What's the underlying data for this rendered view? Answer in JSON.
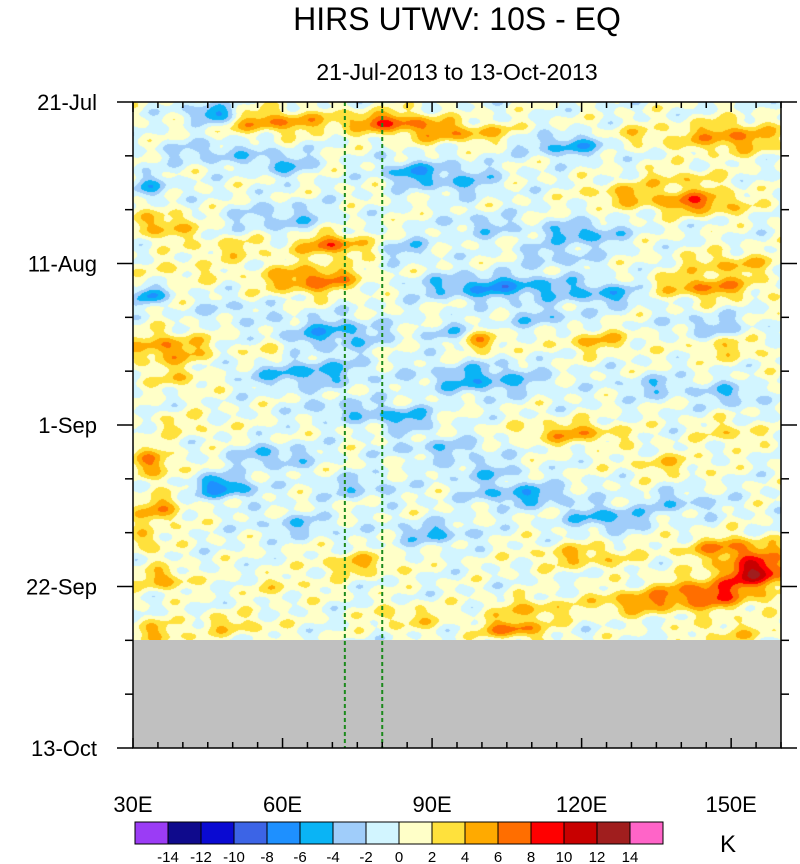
{
  "chart_data": {
    "type": "heatmap",
    "title": "HIRS UTWV: 10S - EQ",
    "subtitle": "21-Jul-2013 to 13-Oct-2013",
    "x_axis": {
      "range": [
        30,
        160
      ],
      "tick_values": [
        30,
        60,
        90,
        120,
        150
      ],
      "tick_labels": [
        "30E",
        "60E",
        "90E",
        "120E",
        "150E"
      ],
      "minor_step": 5
    },
    "y_axis": {
      "range_days": [
        0,
        84
      ],
      "direction": "downward",
      "tick_days": [
        0,
        21,
        42,
        63,
        84
      ],
      "tick_labels": [
        "21-Jul",
        "11-Aug",
        "1-Sep",
        "22-Sep",
        "13-Oct"
      ],
      "minor_step_days": 7
    },
    "missing_after_day": 70,
    "missing_color": "#c0c0c0",
    "reference_lines": [
      {
        "lon": 72.5,
        "color": "#1c8a1c",
        "style": "dashed"
      },
      {
        "lon": 80,
        "color": "#1c8a1c",
        "style": "dashed"
      }
    ],
    "colorbar": {
      "unit": "K",
      "tick_labels": [
        "-14",
        "-12",
        "-10",
        "-8",
        "-6",
        "-4",
        "-2",
        "0",
        "2",
        "4",
        "6",
        "8",
        "10",
        "12",
        "14"
      ],
      "levels": [
        -14,
        -12,
        -10,
        -8,
        -6,
        -4,
        -2,
        0,
        2,
        4,
        6,
        8,
        10,
        12,
        14
      ],
      "colors": [
        "#9b3cf5",
        "#0f0a8c",
        "#0a0ad2",
        "#3c64e6",
        "#1e90ff",
        "#0ab4f5",
        "#a0cdfa",
        "#d2f5ff",
        "#ffffc8",
        "#ffe13c",
        "#ffaa00",
        "#ff6e00",
        "#ff0000",
        "#c80000",
        "#a01e1e",
        "#ff64c8"
      ]
    },
    "anomaly_features": [
      {
        "day": 1.5,
        "lon": 46,
        "amp": -7,
        "dlon": 5,
        "dday": 1.2
      },
      {
        "day": 2.5,
        "lon": 58,
        "amp": 6,
        "dlon": 10,
        "dday": 1.5
      },
      {
        "day": 2.5,
        "lon": 81,
        "amp": 7,
        "dlon": 10,
        "dday": 1.3
      },
      {
        "day": 4,
        "lon": 95,
        "amp": 5,
        "dlon": 12,
        "dday": 1.3
      },
      {
        "day": 4.5,
        "lon": 150,
        "amp": 6,
        "dlon": 10,
        "dday": 2
      },
      {
        "day": 4.5,
        "lon": 130,
        "amp": 3,
        "dlon": 8,
        "dday": 1.5
      },
      {
        "day": 5.5,
        "lon": 118,
        "amp": -5,
        "dlon": 10,
        "dday": 1.5
      },
      {
        "day": 6.5,
        "lon": 46,
        "amp": -3,
        "dlon": 10,
        "dday": 1.5
      },
      {
        "day": 8,
        "lon": 60,
        "amp": -4,
        "dlon": 6,
        "dday": 1.5
      },
      {
        "day": 9,
        "lon": 85,
        "amp": -5,
        "dlon": 5,
        "dday": 1.5
      },
      {
        "day": 10,
        "lon": 95,
        "amp": -4,
        "dlon": 8,
        "dday": 2
      },
      {
        "day": 10,
        "lon": 140,
        "amp": 3,
        "dlon": 8,
        "dday": 1.5
      },
      {
        "day": 11,
        "lon": 34,
        "amp": -4,
        "dlon": 4,
        "dday": 1.5
      },
      {
        "day": 12,
        "lon": 128,
        "amp": 4,
        "dlon": 7,
        "dday": 1.5
      },
      {
        "day": 13,
        "lon": 143,
        "amp": 7,
        "dlon": 9,
        "dday": 1.5
      },
      {
        "day": 15,
        "lon": 60,
        "amp": -3,
        "dlon": 10,
        "dday": 2
      },
      {
        "day": 16,
        "lon": 36,
        "amp": 5,
        "dlon": 6,
        "dday": 1.8
      },
      {
        "day": 16,
        "lon": 100,
        "amp": -3,
        "dlon": 7,
        "dday": 1.5
      },
      {
        "day": 17,
        "lon": 120,
        "amp": -5,
        "dlon": 8,
        "dday": 1.5
      },
      {
        "day": 18.5,
        "lon": 70,
        "amp": 7,
        "dlon": 7,
        "dday": 1.5
      },
      {
        "day": 19,
        "lon": 50,
        "amp": 3,
        "dlon": 8,
        "dday": 1.5
      },
      {
        "day": 19,
        "lon": 85,
        "amp": -3,
        "dlon": 6,
        "dday": 1.5
      },
      {
        "day": 20,
        "lon": 115,
        "amp": -3,
        "dlon": 8,
        "dday": 1.5
      },
      {
        "day": 21,
        "lon": 150,
        "amp": 4,
        "dlon": 10,
        "dday": 1.5
      },
      {
        "day": 22,
        "lon": 40,
        "amp": 2,
        "dlon": 8,
        "dday": 1.5
      },
      {
        "day": 23,
        "lon": 66,
        "amp": 7,
        "dlon": 10,
        "dday": 1.8
      },
      {
        "day": 24,
        "lon": 103,
        "amp": -6,
        "dlon": 16,
        "dday": 1.6
      },
      {
        "day": 24,
        "lon": 145,
        "amp": 6,
        "dlon": 10,
        "dday": 1.5
      },
      {
        "day": 25,
        "lon": 33,
        "amp": -6,
        "dlon": 3,
        "dday": 1.2
      },
      {
        "day": 25,
        "lon": 125,
        "amp": -4,
        "dlon": 8,
        "dday": 1.5
      },
      {
        "day": 27,
        "lon": 50,
        "amp": -2,
        "dlon": 8,
        "dday": 1.5
      },
      {
        "day": 28,
        "lon": 112,
        "amp": -3,
        "dlon": 8,
        "dday": 1.5
      },
      {
        "day": 29,
        "lon": 146,
        "amp": -3,
        "dlon": 8,
        "dday": 1.5
      },
      {
        "day": 30,
        "lon": 70,
        "amp": -5,
        "dlon": 10,
        "dday": 2
      },
      {
        "day": 30,
        "lon": 95,
        "amp": -3,
        "dlon": 6,
        "dday": 1.5
      },
      {
        "day": 31,
        "lon": 100,
        "amp": 6,
        "dlon": 4,
        "dday": 1.5
      },
      {
        "day": 31,
        "lon": 123,
        "amp": 4,
        "dlon": 8,
        "dday": 1.5
      },
      {
        "day": 32,
        "lon": 37,
        "amp": 6,
        "dlon": 8,
        "dday": 2
      },
      {
        "day": 32,
        "lon": 150,
        "amp": 3,
        "dlon": 8,
        "dday": 1.5
      },
      {
        "day": 33,
        "lon": 58,
        "amp": 3,
        "dlon": 6,
        "dday": 1.5
      },
      {
        "day": 35,
        "lon": 64,
        "amp": -5,
        "dlon": 12,
        "dday": 2
      },
      {
        "day": 36,
        "lon": 100,
        "amp": -5,
        "dlon": 12,
        "dday": 2
      },
      {
        "day": 36,
        "lon": 40,
        "amp": 3,
        "dlon": 6,
        "dday": 1.5
      },
      {
        "day": 37,
        "lon": 135,
        "amp": -3,
        "dlon": 8,
        "dday": 1.5
      },
      {
        "day": 38,
        "lon": 150,
        "amp": -4,
        "dlon": 5,
        "dday": 1.5
      },
      {
        "day": 40,
        "lon": 72,
        "amp": -3,
        "dlon": 8,
        "dday": 1.5
      },
      {
        "day": 41,
        "lon": 84,
        "amp": -5,
        "dlon": 6,
        "dday": 1.5
      },
      {
        "day": 42,
        "lon": 40,
        "amp": 2,
        "dlon": 8,
        "dday": 1.5
      },
      {
        "day": 43,
        "lon": 118,
        "amp": 5,
        "dlon": 10,
        "dday": 1.5
      },
      {
        "day": 43,
        "lon": 150,
        "amp": 3,
        "dlon": 6,
        "dday": 1.5
      },
      {
        "day": 45,
        "lon": 92,
        "amp": -3,
        "dlon": 10,
        "dday": 1.5
      },
      {
        "day": 46,
        "lon": 58,
        "amp": -4,
        "dlon": 8,
        "dday": 1.5
      },
      {
        "day": 47,
        "lon": 137,
        "amp": 3,
        "dlon": 8,
        "dday": 1.5
      },
      {
        "day": 47,
        "lon": 34,
        "amp": 6,
        "dlon": 4,
        "dday": 2
      },
      {
        "day": 48,
        "lon": 100,
        "amp": -3,
        "dlon": 8,
        "dday": 1.5
      },
      {
        "day": 50,
        "lon": 48,
        "amp": -7,
        "dlon": 6,
        "dday": 1.5
      },
      {
        "day": 50,
        "lon": 75,
        "amp": -3,
        "dlon": 8,
        "dday": 1.5
      },
      {
        "day": 51,
        "lon": 108,
        "amp": -5,
        "dlon": 10,
        "dday": 1.5
      },
      {
        "day": 52,
        "lon": 140,
        "amp": -3,
        "dlon": 8,
        "dday": 1.5
      },
      {
        "day": 53,
        "lon": 35,
        "amp": 5,
        "dlon": 5,
        "dday": 2
      },
      {
        "day": 54,
        "lon": 125,
        "amp": -5,
        "dlon": 8,
        "dday": 1.5
      },
      {
        "day": 55,
        "lon": 63,
        "amp": -3,
        "dlon": 8,
        "dday": 1.5
      },
      {
        "day": 56,
        "lon": 90,
        "amp": -4,
        "dlon": 8,
        "dday": 1.5
      },
      {
        "day": 57,
        "lon": 32,
        "amp": 4,
        "dlon": 4,
        "dday": 1.5
      },
      {
        "day": 58,
        "lon": 150,
        "amp": 6,
        "dlon": 10,
        "dday": 1.5
      },
      {
        "day": 59,
        "lon": 120,
        "amp": 4,
        "dlon": 10,
        "dday": 1.5
      },
      {
        "day": 60,
        "lon": 75,
        "amp": 4,
        "dlon": 8,
        "dday": 1.5
      },
      {
        "day": 61,
        "lon": 155,
        "amp": 11,
        "dlon": 7,
        "dday": 2
      },
      {
        "day": 62,
        "lon": 36,
        "amp": 5,
        "dlon": 5,
        "dday": 1.5
      },
      {
        "day": 63,
        "lon": 60,
        "amp": 2,
        "dlon": 8,
        "dday": 1.5
      },
      {
        "day": 64,
        "lon": 145,
        "amp": 8,
        "dlon": 10,
        "dday": 2
      },
      {
        "day": 65,
        "lon": 130,
        "amp": 5,
        "dlon": 8,
        "dday": 1.5
      },
      {
        "day": 66,
        "lon": 110,
        "amp": 4,
        "dlon": 8,
        "dday": 1.5
      },
      {
        "day": 67,
        "lon": 85,
        "amp": 3,
        "dlon": 8,
        "dday": 1.5
      },
      {
        "day": 68,
        "lon": 50,
        "amp": 3,
        "dlon": 8,
        "dday": 1.5
      },
      {
        "day": 68.5,
        "lon": 106,
        "amp": 7,
        "dlon": 6,
        "dday": 1.2
      },
      {
        "day": 69,
        "lon": 150,
        "amp": 3,
        "dlon": 8,
        "dday": 1.5
      },
      {
        "day": 69,
        "lon": 35,
        "amp": 4,
        "dlon": 5,
        "dday": 1.5
      }
    ]
  }
}
